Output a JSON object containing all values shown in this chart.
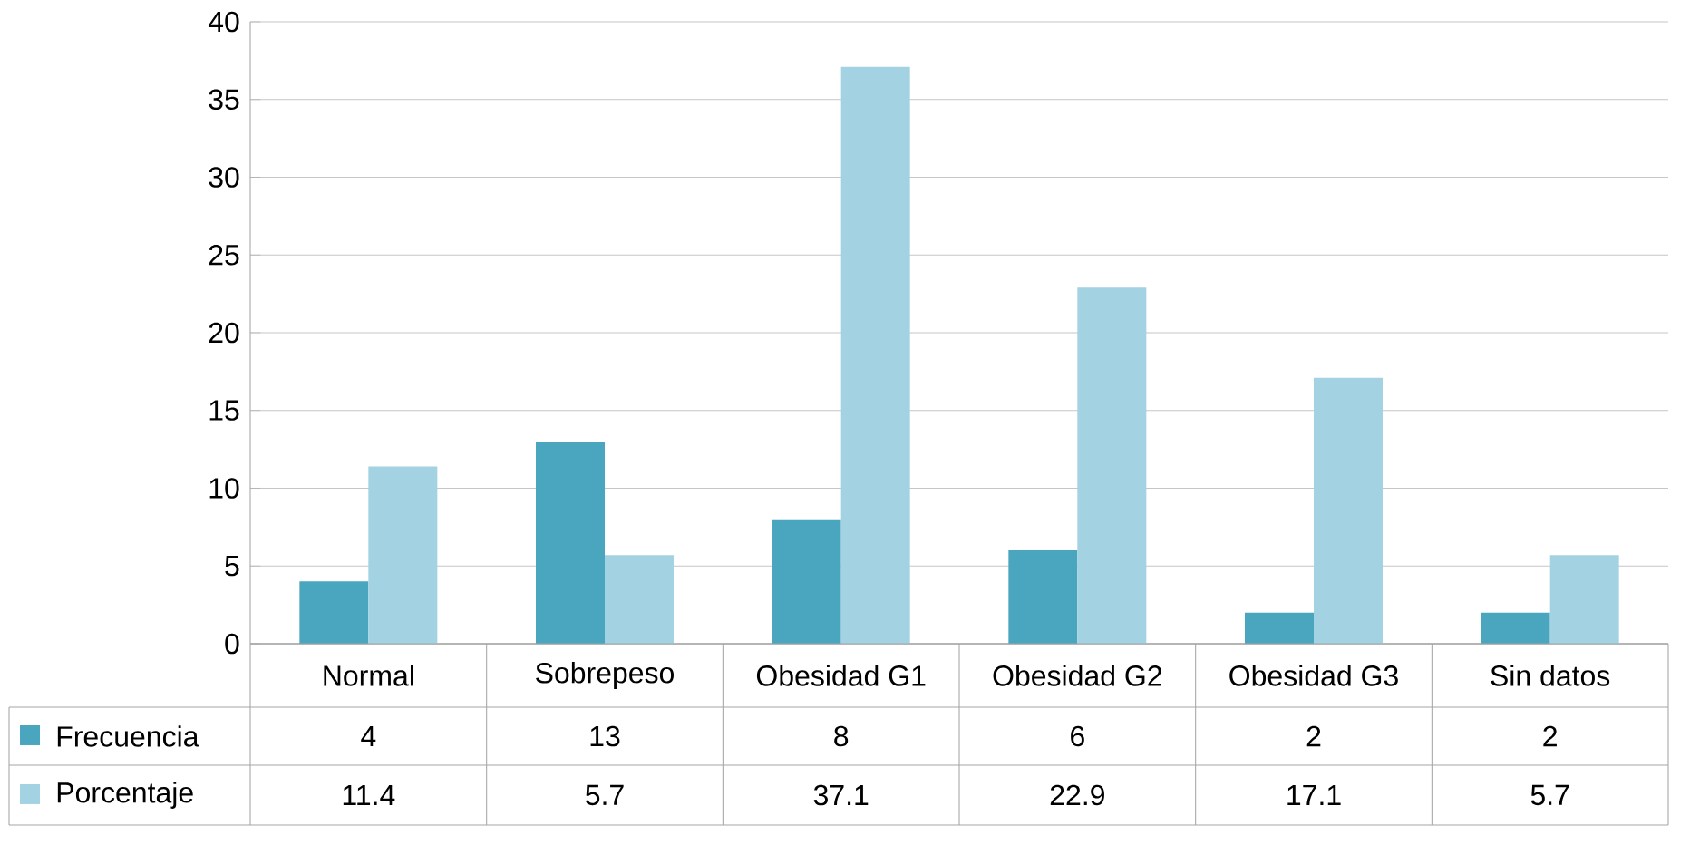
{
  "chart_data": {
    "type": "bar",
    "categories": [
      "Normal",
      "Sobrepeso",
      "Obesidad G1",
      "Obesidad G2",
      "Obesidad G3",
      "Sin datos"
    ],
    "series": [
      {
        "name": "Frecuencia",
        "color": "#4aa5bf",
        "values": [
          4,
          13,
          8,
          6,
          2,
          2
        ]
      },
      {
        "name": "Porcentaje",
        "color": "#a3d2e2",
        "values": [
          11.4,
          5.7,
          37.1,
          22.9,
          17.1,
          5.7
        ]
      }
    ],
    "ylim": [
      0,
      40
    ],
    "yticks": [
      0,
      5,
      10,
      15,
      20,
      25,
      30,
      35,
      40
    ],
    "grid": "y",
    "legend": "bottom left",
    "data_labels": true
  }
}
